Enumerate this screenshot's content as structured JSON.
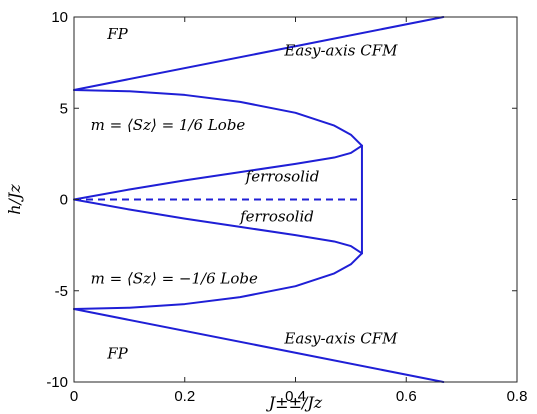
{
  "chart_data": {
    "type": "line",
    "xlabel": "J±±/Jz",
    "ylabel": "h/Jz",
    "xlim": [
      0,
      0.8
    ],
    "ylim": [
      -10,
      10
    ],
    "x_ticks": [
      "0",
      "0.2",
      "0.4",
      "0.6",
      "0.8"
    ],
    "y_ticks": [
      "10",
      "5",
      "0",
      "-5",
      "-10"
    ],
    "grid": false,
    "line_color": "#1f1fd6",
    "series": [
      {
        "style": "solid",
        "x": [
          0,
          0.667
        ],
        "y": [
          6,
          10
        ]
      },
      {
        "style": "solid",
        "x": [
          0,
          0.1,
          0.2,
          0.3,
          0.4,
          0.47,
          0.5,
          0.52
        ],
        "y": [
          6,
          5.93,
          5.73,
          5.35,
          4.75,
          4.05,
          3.55,
          2.95
        ]
      },
      {
        "style": "solid",
        "x": [
          0,
          0.1,
          0.2,
          0.3,
          0.4,
          0.47,
          0.5,
          0.52
        ],
        "y": [
          0,
          0.55,
          1.05,
          1.5,
          1.95,
          2.3,
          2.55,
          2.95
        ]
      },
      {
        "style": "dashed",
        "x": [
          0,
          0.52
        ],
        "y": [
          0,
          0
        ]
      },
      {
        "style": "solid",
        "x": [
          0,
          0.1,
          0.2,
          0.3,
          0.4,
          0.47,
          0.5,
          0.52
        ],
        "y": [
          0,
          -0.55,
          -1.05,
          -1.5,
          -1.95,
          -2.3,
          -2.55,
          -2.95
        ]
      },
      {
        "style": "solid",
        "x": [
          0,
          0.1,
          0.2,
          0.3,
          0.4,
          0.47,
          0.5,
          0.52
        ],
        "y": [
          -6,
          -5.93,
          -5.73,
          -5.35,
          -4.75,
          -4.05,
          -3.55,
          -2.95
        ]
      },
      {
        "style": "solid",
        "x": [
          0.52,
          0.52
        ],
        "y": [
          2.95,
          -2.95
        ]
      },
      {
        "style": "solid",
        "x": [
          0,
          0.667
        ],
        "y": [
          -6,
          -10
        ]
      }
    ],
    "annotations": [
      {
        "text": "FP",
        "x": 0.06,
        "y": 8.8
      },
      {
        "text": "Easy-axis CFM",
        "x": 0.38,
        "y": 7.9
      },
      {
        "text": "m = ⟨Sz⟩ = 1/6 Lobe",
        "x": 0.03,
        "y": 3.8
      },
      {
        "text": "ferrosolid",
        "x": 0.31,
        "y": 1.0
      },
      {
        "text": "ferrosolid",
        "x": 0.3,
        "y": -1.2
      },
      {
        "text": "m = ⟨Sz⟩ = −1/6 Lobe",
        "x": 0.03,
        "y": -4.6
      },
      {
        "text": "Easy-axis CFM",
        "x": 0.38,
        "y": -7.9
      },
      {
        "text": "FP",
        "x": 0.06,
        "y": -8.7
      }
    ]
  }
}
